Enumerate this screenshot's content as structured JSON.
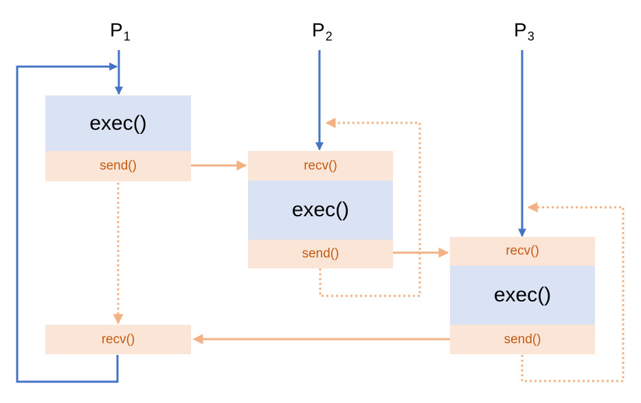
{
  "processes": [
    {
      "name": "P",
      "index": "1",
      "exec_label": "exec()",
      "send_label": "send()",
      "recv_label": "recv()"
    },
    {
      "name": "P",
      "index": "2",
      "exec_label": "exec()",
      "send_label": "send()",
      "recv_label": "recv()"
    },
    {
      "name": "P",
      "index": "3",
      "exec_label": "exec()",
      "send_label": "send()",
      "recv_label": "recv()"
    }
  ],
  "colors": {
    "control_flow": "#4472c4",
    "message": "#f4b183",
    "exec_fill": "#dae3f3",
    "io_fill": "#fbe5d6",
    "io_text": "#c55a11"
  }
}
